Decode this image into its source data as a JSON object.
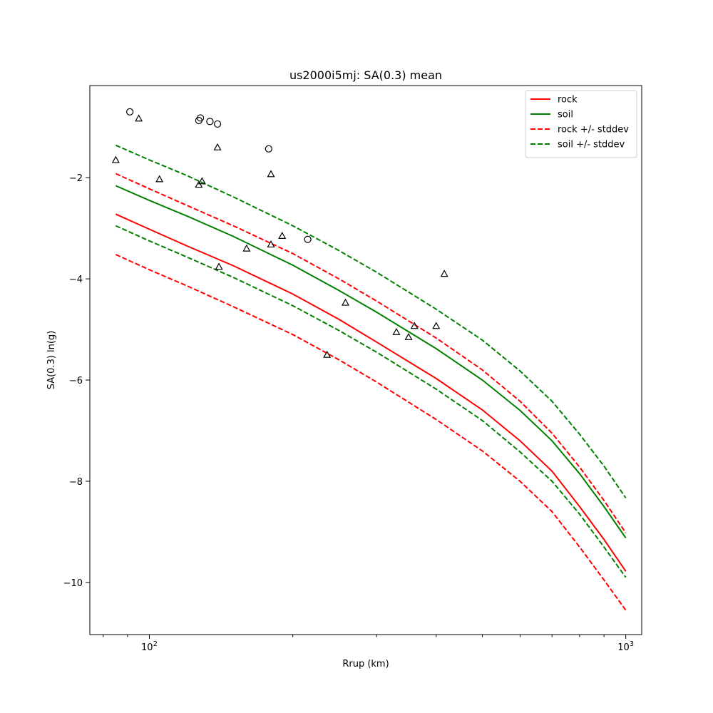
{
  "chart_data": {
    "type": "line",
    "title": "us2000i5mj: SA(0.3) mean",
    "xlabel": "Rrup (km)",
    "ylabel": "SA(0.3) ln(g)",
    "xscale": "log",
    "xlim": [
      75,
      1080
    ],
    "ylim": [
      -11.03,
      -0.18
    ],
    "xticks_major": [
      {
        "value": 100,
        "label": "10^2"
      },
      {
        "value": 1000,
        "label": "10^3"
      }
    ],
    "xticks_minor": [
      80,
      90,
      200,
      300,
      400,
      500,
      600,
      700,
      800,
      900
    ],
    "yticks": [
      -10,
      -8,
      -6,
      -4,
      -2
    ],
    "grid": false,
    "legend": {
      "placement": "top-right",
      "entries": [
        {
          "label": "rock",
          "color": "#ff0000",
          "style": "solid"
        },
        {
          "label": "soil",
          "color": "#008000",
          "style": "solid"
        },
        {
          "label": "rock +/- stddev",
          "color": "#ff0000",
          "style": "dashed"
        },
        {
          "label": "soil +/- stddev",
          "color": "#008000",
          "style": "dashed"
        }
      ]
    },
    "series": [
      {
        "key": "rock",
        "color": "#ff0000",
        "style": "solid",
        "x": [
          85,
          100,
          120,
          150,
          200,
          250,
          300,
          400,
          500,
          600,
          700,
          800,
          900,
          1000
        ],
        "y": [
          -2.72,
          -3.02,
          -3.35,
          -3.74,
          -4.3,
          -4.8,
          -5.25,
          -5.97,
          -6.59,
          -7.2,
          -7.8,
          -8.5,
          -9.15,
          -9.78
        ]
      },
      {
        "key": "soil",
        "color": "#008000",
        "style": "solid",
        "x": [
          85,
          100,
          120,
          150,
          200,
          250,
          300,
          400,
          500,
          600,
          700,
          800,
          900,
          1000
        ],
        "y": [
          -2.16,
          -2.45,
          -2.76,
          -3.16,
          -3.73,
          -4.23,
          -4.66,
          -5.38,
          -6.0,
          -6.6,
          -7.2,
          -7.85,
          -8.5,
          -9.12
        ]
      },
      {
        "key": "rock-upper",
        "color": "#ff0000",
        "style": "dashed",
        "x": [
          85,
          100,
          120,
          150,
          200,
          250,
          300,
          400,
          500,
          600,
          700,
          800,
          900,
          1000
        ],
        "y": [
          -1.92,
          -2.22,
          -2.55,
          -2.95,
          -3.5,
          -4.0,
          -4.44,
          -5.17,
          -5.8,
          -6.42,
          -7.05,
          -7.72,
          -8.38,
          -9.02
        ]
      },
      {
        "key": "rock-lower",
        "color": "#ff0000",
        "style": "dashed",
        "x": [
          85,
          100,
          120,
          150,
          200,
          250,
          300,
          400,
          500,
          600,
          700,
          800,
          900,
          1000
        ],
        "y": [
          -3.52,
          -3.82,
          -4.14,
          -4.55,
          -5.1,
          -5.6,
          -6.04,
          -6.78,
          -7.4,
          -8.0,
          -8.6,
          -9.3,
          -9.95,
          -10.55
        ]
      },
      {
        "key": "soil-upper",
        "color": "#008000",
        "style": "dashed",
        "x": [
          85,
          100,
          120,
          150,
          200,
          250,
          300,
          400,
          500,
          600,
          700,
          800,
          900,
          1000
        ],
        "y": [
          -1.36,
          -1.65,
          -1.96,
          -2.38,
          -2.95,
          -3.44,
          -3.87,
          -4.6,
          -5.21,
          -5.82,
          -6.42,
          -7.07,
          -7.7,
          -8.33
        ]
      },
      {
        "key": "soil-lower",
        "color": "#008000",
        "style": "dashed",
        "x": [
          85,
          100,
          120,
          150,
          200,
          250,
          300,
          400,
          500,
          600,
          700,
          800,
          900,
          1000
        ],
        "y": [
          -2.95,
          -3.25,
          -3.57,
          -3.97,
          -4.53,
          -5.02,
          -5.45,
          -6.18,
          -6.8,
          -7.42,
          -8.0,
          -8.65,
          -9.3,
          -9.9
        ]
      }
    ],
    "observations_circle": [
      {
        "x": 91,
        "y": -0.7
      },
      {
        "x": 127,
        "y": -0.87
      },
      {
        "x": 128,
        "y": -0.82
      },
      {
        "x": 134,
        "y": -0.89
      },
      {
        "x": 139,
        "y": -0.94
      },
      {
        "x": 178,
        "y": -1.43
      },
      {
        "x": 215,
        "y": -3.22
      }
    ],
    "observations_triangle": [
      {
        "x": 85,
        "y": -1.65
      },
      {
        "x": 95,
        "y": -0.83
      },
      {
        "x": 105,
        "y": -2.03
      },
      {
        "x": 127,
        "y": -2.14
      },
      {
        "x": 129,
        "y": -2.07
      },
      {
        "x": 139,
        "y": -1.4
      },
      {
        "x": 140,
        "y": -3.76
      },
      {
        "x": 160,
        "y": -3.4
      },
      {
        "x": 180,
        "y": -3.32
      },
      {
        "x": 180,
        "y": -1.93
      },
      {
        "x": 190,
        "y": -3.15
      },
      {
        "x": 236,
        "y": -5.5
      },
      {
        "x": 258,
        "y": -4.47
      },
      {
        "x": 330,
        "y": -5.05
      },
      {
        "x": 350,
        "y": -5.15
      },
      {
        "x": 360,
        "y": -4.93
      },
      {
        "x": 400,
        "y": -4.93
      },
      {
        "x": 416,
        "y": -3.9
      }
    ]
  }
}
